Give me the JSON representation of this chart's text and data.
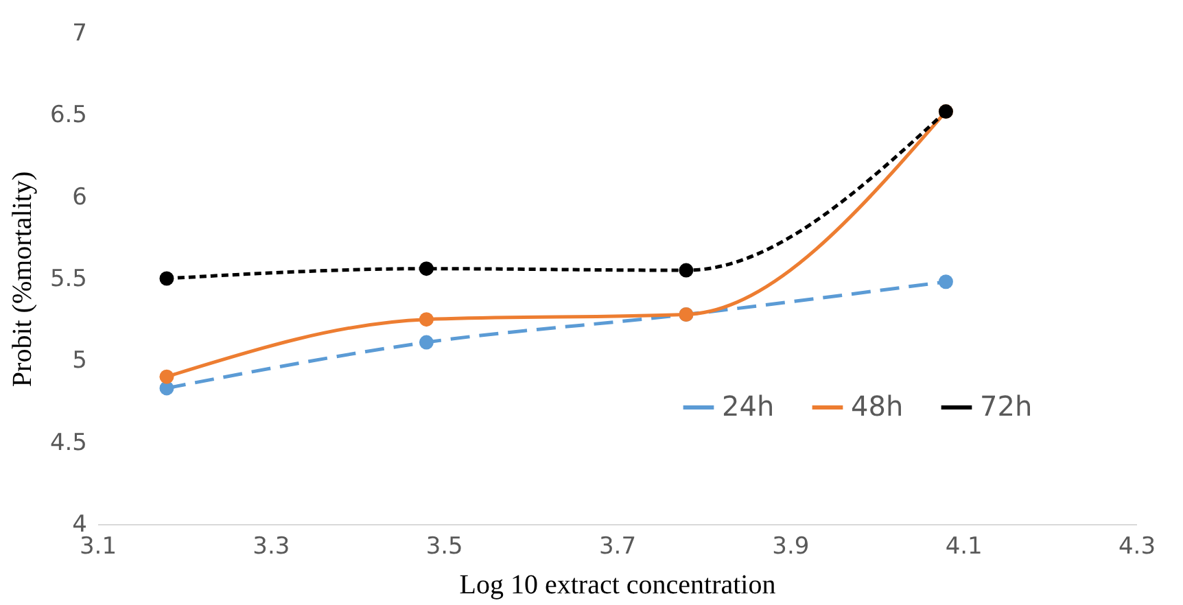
{
  "chart_data": {
    "type": "line",
    "xlabel": "Log 10 extract concentration",
    "ylabel": "Probit (%mortality)",
    "xlim": [
      3.1,
      4.3
    ],
    "xticks": [
      3.1,
      3.3,
      3.5,
      3.7,
      3.9,
      4.1,
      4.3
    ],
    "ylim": [
      4,
      7
    ],
    "yticks": [
      4,
      4.5,
      5,
      5.5,
      6,
      6.5,
      7
    ],
    "grid": false,
    "legend": "bottom right",
    "marker": "circle",
    "x": [
      3.18,
      3.48,
      3.78,
      4.08
    ],
    "series": [
      {
        "name": "24h",
        "color": "#5b9bd5",
        "line_style": "dashed",
        "values": [
          4.83,
          5.11,
          5.28,
          5.48
        ]
      },
      {
        "name": "48h",
        "color": "#ed7d31",
        "line_style": "solid",
        "values": [
          4.9,
          5.25,
          5.28,
          6.52
        ]
      },
      {
        "name": "72h",
        "color": "#000000",
        "line_style": "dotted",
        "values": [
          5.5,
          5.56,
          5.55,
          6.52
        ]
      }
    ]
  }
}
